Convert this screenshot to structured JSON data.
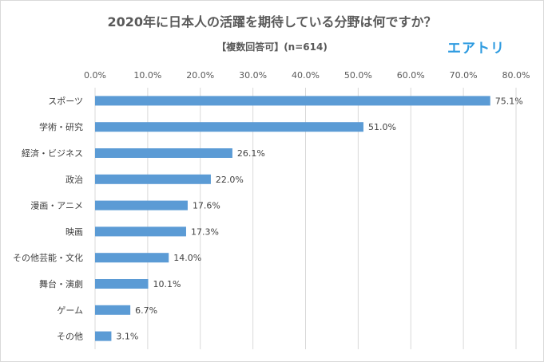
{
  "title": "2020年に日本人の活躍を期待している分野は何ですか？",
  "subtitle": "【複数回答可】(n=614)",
  "logo": "エアトリ",
  "colors": {
    "bar": "#5b9bd5",
    "grid": "#d9d9d9",
    "text": "#595959"
  },
  "chart_data": {
    "type": "bar",
    "orientation": "horizontal",
    "title": "2020年に日本人の活躍を期待している分野は何ですか？",
    "subtitle": "【複数回答可】(n=614)",
    "categories": [
      "スポーツ",
      "学術・研究",
      "経済・ビジネス",
      "政治",
      "漫画・アニメ",
      "映画",
      "その他芸能・文化",
      "舞台・演劇",
      "ゲーム",
      "その他"
    ],
    "values": [
      75.1,
      51.0,
      26.1,
      22.0,
      17.6,
      17.3,
      14.0,
      10.1,
      6.7,
      3.1
    ],
    "value_labels": [
      "75.1%",
      "51.0%",
      "26.1%",
      "22.0%",
      "17.6%",
      "17.3%",
      "14.0%",
      "10.1%",
      "6.7%",
      "3.1%"
    ],
    "xlim": [
      0,
      80
    ],
    "xticks": [
      0,
      10,
      20,
      30,
      40,
      50,
      60,
      70,
      80
    ],
    "xtick_labels": [
      "0.0%",
      "10.0%",
      "20.0%",
      "30.0%",
      "40.0%",
      "50.0%",
      "60.0%",
      "70.0%",
      "80.0%"
    ],
    "x_axis_position": "top",
    "grid": true,
    "legend": "none"
  }
}
